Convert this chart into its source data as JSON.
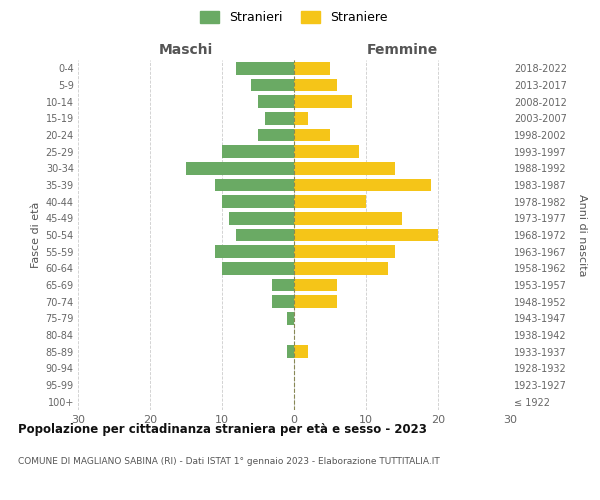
{
  "age_groups": [
    "100+",
    "95-99",
    "90-94",
    "85-89",
    "80-84",
    "75-79",
    "70-74",
    "65-69",
    "60-64",
    "55-59",
    "50-54",
    "45-49",
    "40-44",
    "35-39",
    "30-34",
    "25-29",
    "20-24",
    "15-19",
    "10-14",
    "5-9",
    "0-4"
  ],
  "birth_years": [
    "≤ 1922",
    "1923-1927",
    "1928-1932",
    "1933-1937",
    "1938-1942",
    "1943-1947",
    "1948-1952",
    "1953-1957",
    "1958-1962",
    "1963-1967",
    "1968-1972",
    "1973-1977",
    "1978-1982",
    "1983-1987",
    "1988-1992",
    "1993-1997",
    "1998-2002",
    "2003-2007",
    "2008-2012",
    "2013-2017",
    "2018-2022"
  ],
  "maschi": [
    0,
    0,
    0,
    1,
    0,
    1,
    3,
    3,
    10,
    11,
    8,
    9,
    10,
    11,
    15,
    10,
    5,
    4,
    5,
    6,
    8
  ],
  "femmine": [
    0,
    0,
    0,
    2,
    0,
    0,
    6,
    6,
    13,
    14,
    20,
    15,
    10,
    19,
    14,
    9,
    5,
    2,
    8,
    6,
    5
  ],
  "maschi_color": "#6aaa64",
  "femmine_color": "#f5c518",
  "title": "Popolazione per cittadinanza straniera per età e sesso - 2023",
  "subtitle": "COMUNE DI MAGLIANO SABINA (RI) - Dati ISTAT 1° gennaio 2023 - Elaborazione TUTTITALIA.IT",
  "xlabel_left": "Maschi",
  "xlabel_right": "Femmine",
  "ylabel_left": "Fasce di età",
  "ylabel_right": "Anni di nascita",
  "legend_maschi": "Stranieri",
  "legend_femmine": "Straniere",
  "xlim": 30,
  "background_color": "#ffffff",
  "grid_color": "#cccccc"
}
